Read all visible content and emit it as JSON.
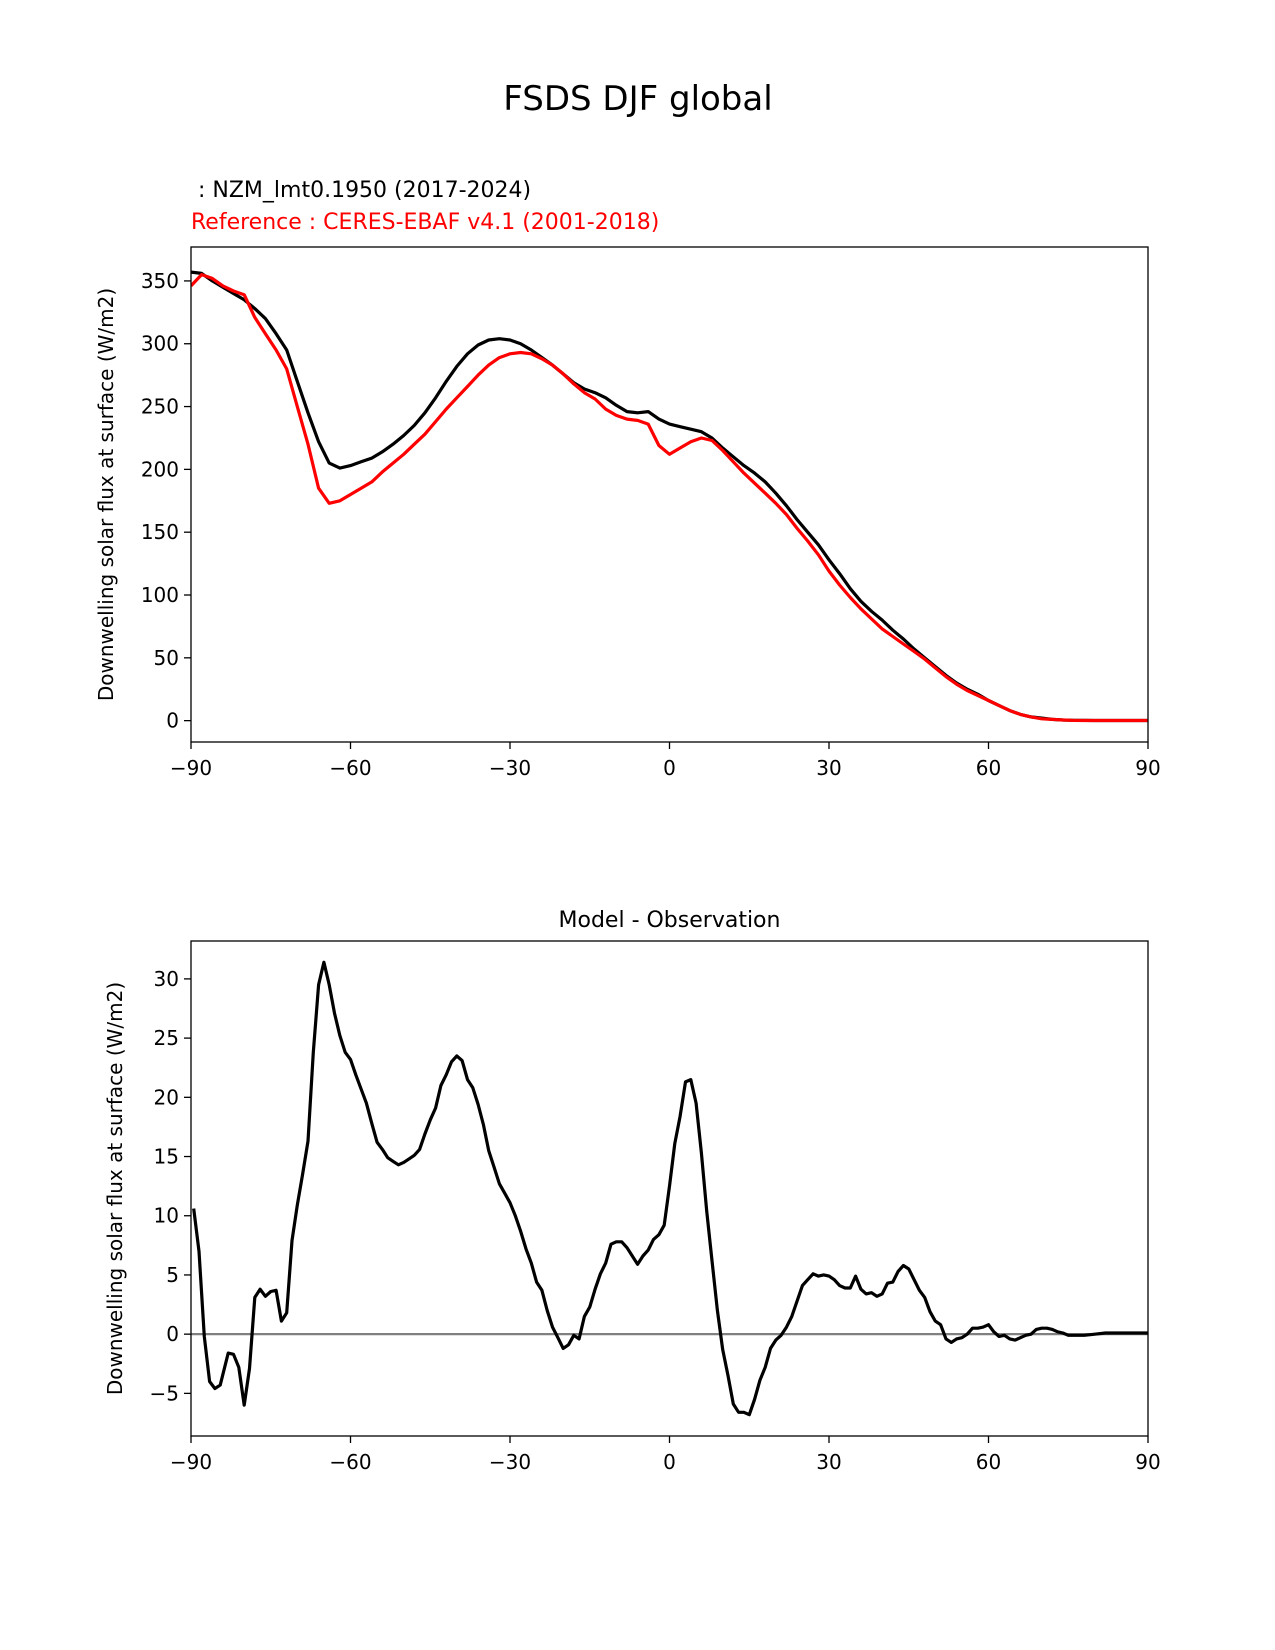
{
  "figure": {
    "title": "FSDS DJF global",
    "model_label": " : NZM_lmt0.1950 (2017-2024)",
    "reference_label": "Reference : CERES-EBAF v4.1 (2001-2018)",
    "model_color": "#000000",
    "reference_color": "#ff0000",
    "zero_line_color": "#808080"
  },
  "chart_data": [
    {
      "type": "line",
      "title": "",
      "xlabel": "",
      "ylabel": "Downwelling solar flux at surface (W/m2)",
      "xlim": [
        -90,
        90
      ],
      "ylim": [
        -17,
        377
      ],
      "xticks": [
        -90,
        -60,
        -30,
        0,
        30,
        60,
        90
      ],
      "xtick_labels": [
        "−90",
        "−60",
        "−30",
        "0",
        "30",
        "60",
        "90"
      ],
      "yticks": [
        0,
        50,
        100,
        150,
        200,
        250,
        300,
        350
      ],
      "ytick_labels": [
        "0",
        "50",
        "100",
        "150",
        "200",
        "250",
        "300",
        "350"
      ],
      "x": [
        -90,
        -88,
        -86,
        -84,
        -82,
        -80,
        -78,
        -76,
        -74,
        -72,
        -70,
        -68,
        -66,
        -64,
        -62,
        -60,
        -58,
        -56,
        -54,
        -52,
        -50,
        -48,
        -46,
        -44,
        -42,
        -40,
        -38,
        -36,
        -34,
        -32,
        -30,
        -28,
        -26,
        -24,
        -22,
        -20,
        -18,
        -16,
        -14,
        -12,
        -10,
        -8,
        -6,
        -4,
        -2,
        0,
        2,
        4,
        6,
        8,
        10,
        12,
        14,
        16,
        18,
        20,
        22,
        24,
        26,
        28,
        30,
        32,
        34,
        36,
        38,
        40,
        42,
        44,
        46,
        48,
        50,
        52,
        54,
        56,
        58,
        60,
        62,
        64,
        66,
        68,
        70,
        72,
        74,
        76,
        78,
        80,
        82,
        84,
        86,
        88,
        90
      ],
      "series": [
        {
          "name": "NZM_lmt0.1950 (2017-2024)",
          "color": "#000000",
          "values": [
            357,
            356,
            350,
            345,
            340,
            335,
            328,
            320,
            308,
            295,
            270,
            245,
            222,
            205,
            201,
            203,
            206,
            209,
            214,
            220,
            227,
            235,
            245,
            257,
            270,
            282,
            292,
            299,
            303,
            304,
            303,
            300,
            295,
            289,
            283,
            276,
            269,
            264,
            261,
            257,
            251,
            246,
            245,
            246,
            240,
            236,
            234,
            232,
            230,
            225,
            217,
            210,
            203,
            197,
            190,
            181,
            171,
            160,
            150,
            140,
            128,
            117,
            105,
            95,
            87,
            80,
            72,
            65,
            57,
            50,
            43,
            36,
            30,
            25,
            21,
            16,
            12,
            8,
            5,
            3,
            2,
            1,
            0.5,
            0.3,
            0.2,
            0.1,
            0.1,
            0.1,
            0.1,
            0.1,
            0.1
          ]
        },
        {
          "name": "CERES-EBAF v4.1 (2001-2018)",
          "color": "#ff0000",
          "values": [
            346,
            355,
            352,
            346,
            342,
            339,
            321,
            308,
            295,
            280,
            250,
            220,
            185,
            173,
            175,
            180,
            185,
            190,
            198,
            205,
            212,
            220,
            228,
            238,
            248,
            257,
            266,
            275,
            283,
            289,
            292,
            293,
            292,
            288,
            283,
            276,
            268,
            261,
            256,
            248,
            243,
            240,
            239,
            236,
            219,
            212,
            217,
            222,
            225,
            223,
            215,
            206,
            197,
            189,
            181,
            173,
            164,
            153,
            143,
            132,
            119,
            108,
            98,
            89,
            81,
            73,
            67,
            61,
            55,
            49,
            42,
            35,
            29,
            24,
            20,
            16,
            12,
            8,
            5,
            3,
            1.5,
            1,
            0.5,
            0.2,
            0.1,
            0.1,
            0.1,
            0.1,
            0.1,
            0.1,
            0.1
          ]
        }
      ]
    },
    {
      "type": "line",
      "title": "Model - Observation",
      "xlabel": "",
      "ylabel": "Downwelling solar flux at surface (W/m2)",
      "xlim": [
        -90,
        90
      ],
      "ylim": [
        -8.6,
        33.2
      ],
      "xticks": [
        -90,
        -60,
        -30,
        0,
        30,
        60,
        90
      ],
      "xtick_labels": [
        "−90",
        "−60",
        "−30",
        "0",
        "30",
        "60",
        "90"
      ],
      "yticks": [
        -5,
        0,
        5,
        10,
        15,
        20,
        25,
        30
      ],
      "ytick_labels": [
        "−5",
        "0",
        "5",
        "10",
        "15",
        "20",
        "25",
        "30"
      ],
      "zero_line": 0,
      "x": [
        -89.5,
        -88.5,
        -87.5,
        -86.5,
        -85.5,
        -84.5,
        -83,
        -82,
        -81,
        -80,
        -79,
        -78,
        -77,
        -76,
        -75,
        -74,
        -73,
        -72,
        -71,
        -70,
        -69,
        -68,
        -67,
        -66,
        -65,
        -64,
        -63,
        -62,
        -61,
        -60,
        -59,
        -58,
        -57,
        -56,
        -55,
        -54,
        -53,
        -52,
        -51,
        -50,
        -49,
        -48,
        -47,
        -46,
        -45,
        -44,
        -43,
        -42,
        -41,
        -40,
        -39,
        -38,
        -37,
        -36,
        -35,
        -34,
        -33,
        -32,
        -31,
        -30,
        -29,
        -28,
        -27,
        -26,
        -25,
        -24,
        -23,
        -22,
        -21,
        -20,
        -19,
        -18,
        -17,
        -16,
        -15,
        -14,
        -13,
        -12,
        -11,
        -10,
        -9,
        -8,
        -7,
        -6,
        -5,
        -4,
        -3,
        -2,
        -1,
        0,
        1,
        2,
        3,
        4,
        5,
        6,
        7,
        8,
        9,
        10,
        11,
        12,
        13,
        14,
        15,
        16,
        17,
        18,
        19,
        20,
        21,
        22,
        23,
        24,
        25,
        26,
        27,
        28,
        29,
        30,
        31,
        32,
        33,
        34,
        35,
        36,
        37,
        38,
        39,
        40,
        41,
        42,
        43,
        44,
        45,
        46,
        47,
        48,
        49,
        50,
        51,
        52,
        53,
        54,
        55,
        56,
        57,
        58,
        59,
        60,
        61,
        62,
        63,
        64,
        65,
        66,
        67,
        68,
        69,
        70,
        71,
        72,
        73,
        74,
        75,
        76,
        78,
        80,
        82,
        84,
        86,
        88,
        90
      ],
      "series": [
        {
          "name": "Model - Observation",
          "color": "#000000",
          "values": [
            10.6,
            7,
            -0.2,
            -4,
            -4.6,
            -4.3,
            -1.6,
            -1.7,
            -2.8,
            -6,
            -2.9,
            3.1,
            3.8,
            3.2,
            3.6,
            3.7,
            1.1,
            1.8,
            7.9,
            10.9,
            13.5,
            16.3,
            23.8,
            29.5,
            31.4,
            29.5,
            27.1,
            25.2,
            23.8,
            23.2,
            21.9,
            20.7,
            19.5,
            17.8,
            16.2,
            15.6,
            14.9,
            14.6,
            14.3,
            14.5,
            14.8,
            15.1,
            15.6,
            16.9,
            18.1,
            19.1,
            21,
            21.9,
            23,
            23.5,
            23.1,
            21.5,
            20.8,
            19.4,
            17.7,
            15.5,
            14.1,
            12.7,
            11.9,
            11.1,
            10,
            8.7,
            7.2,
            6,
            4.4,
            3.7,
            2,
            0.6,
            -0.3,
            -1.2,
            -0.9,
            -0.1,
            -0.4,
            1.5,
            2.3,
            3.8,
            5.1,
            6,
            7.6,
            7.8,
            7.8,
            7.3,
            6.6,
            5.9,
            6.6,
            7.1,
            8,
            8.4,
            9.2,
            12.5,
            16.1,
            18.4,
            21.3,
            21.5,
            19.5,
            15.3,
            10.4,
            6.2,
            2,
            -1.3,
            -3.5,
            -5.9,
            -6.6,
            -6.6,
            -6.8,
            -5.5,
            -3.9,
            -2.8,
            -1.2,
            -0.5,
            -0.1,
            0.6,
            1.5,
            2.8,
            4.1,
            4.6,
            5.1,
            4.9,
            5,
            4.9,
            4.6,
            4.1,
            3.9,
            3.9,
            4.9,
            3.8,
            3.4,
            3.5,
            3.2,
            3.4,
            4.3,
            4.4,
            5.3,
            5.8,
            5.5,
            4.6,
            3.7,
            3.1,
            1.9,
            1.1,
            0.8,
            -0.4,
            -0.7,
            -0.4,
            -0.3,
            0,
            0.5,
            0.5,
            0.6,
            0.8,
            0.2,
            -0.2,
            -0.1,
            -0.4,
            -0.5,
            -0.3,
            -0.1,
            0,
            0.4,
            0.5,
            0.5,
            0.4,
            0.2,
            0.1,
            -0.1,
            -0.1,
            -0.1,
            0,
            0.1,
            0.1,
            0.1,
            0.1,
            0.1
          ]
        }
      ]
    }
  ]
}
